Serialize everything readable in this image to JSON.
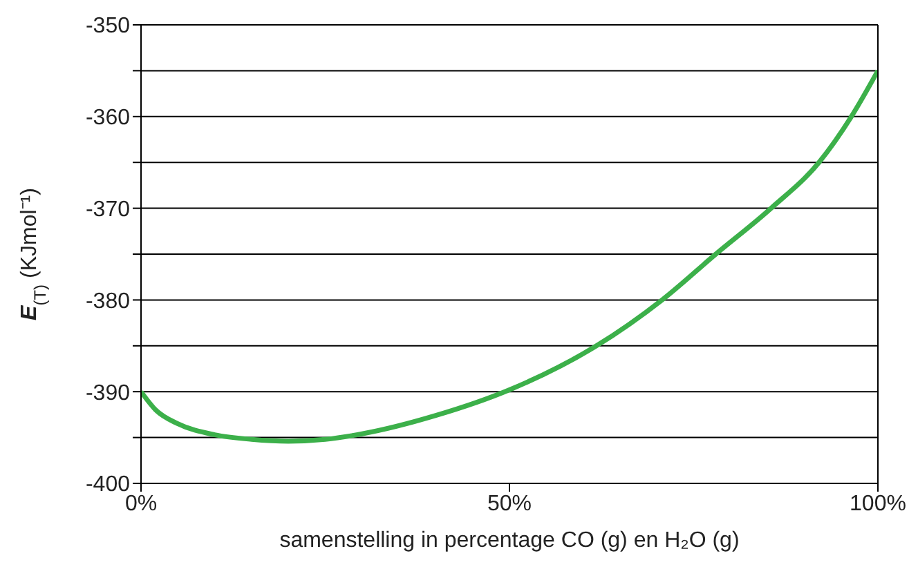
{
  "chart_data": {
    "type": "line",
    "xlabel": "samenstelling in percentage CO (g) en H₂O (g)",
    "ylabel": "E$_{(T)}$ (KJmol⁻¹)",
    "x": [
      0,
      2,
      5,
      10,
      15,
      20,
      25,
      30,
      40,
      50,
      61.8,
      70.7,
      78,
      85.5,
      92,
      96.4,
      100
    ],
    "series": [
      {
        "color": "#3cb04a",
        "values": [
          -390,
          -392,
          -393.5,
          -394.7,
          -395.2,
          -395.4,
          -395.2,
          -394.6,
          -392.6,
          -389.8,
          -385,
          -380,
          -375,
          -370,
          -365,
          -360,
          -355
        ]
      }
    ],
    "xlim": [
      0,
      100
    ],
    "xticks": [
      {
        "value": 0,
        "label": "0%"
      },
      {
        "value": 50,
        "label": "50%"
      },
      {
        "value": 100,
        "label": "100%"
      }
    ],
    "ylim": [
      -400,
      -350
    ],
    "yticks": [
      -400,
      {
        "value": -395,
        "label": null
      },
      -390,
      {
        "value": -385,
        "label": null
      },
      -380,
      {
        "value": -375,
        "label": null
      },
      -370,
      {
        "value": -365,
        "label": null
      },
      -360,
      {
        "value": -355,
        "label": null
      },
      -350
    ],
    "grid": "y",
    "marker": "none",
    "line_style": "solid"
  }
}
